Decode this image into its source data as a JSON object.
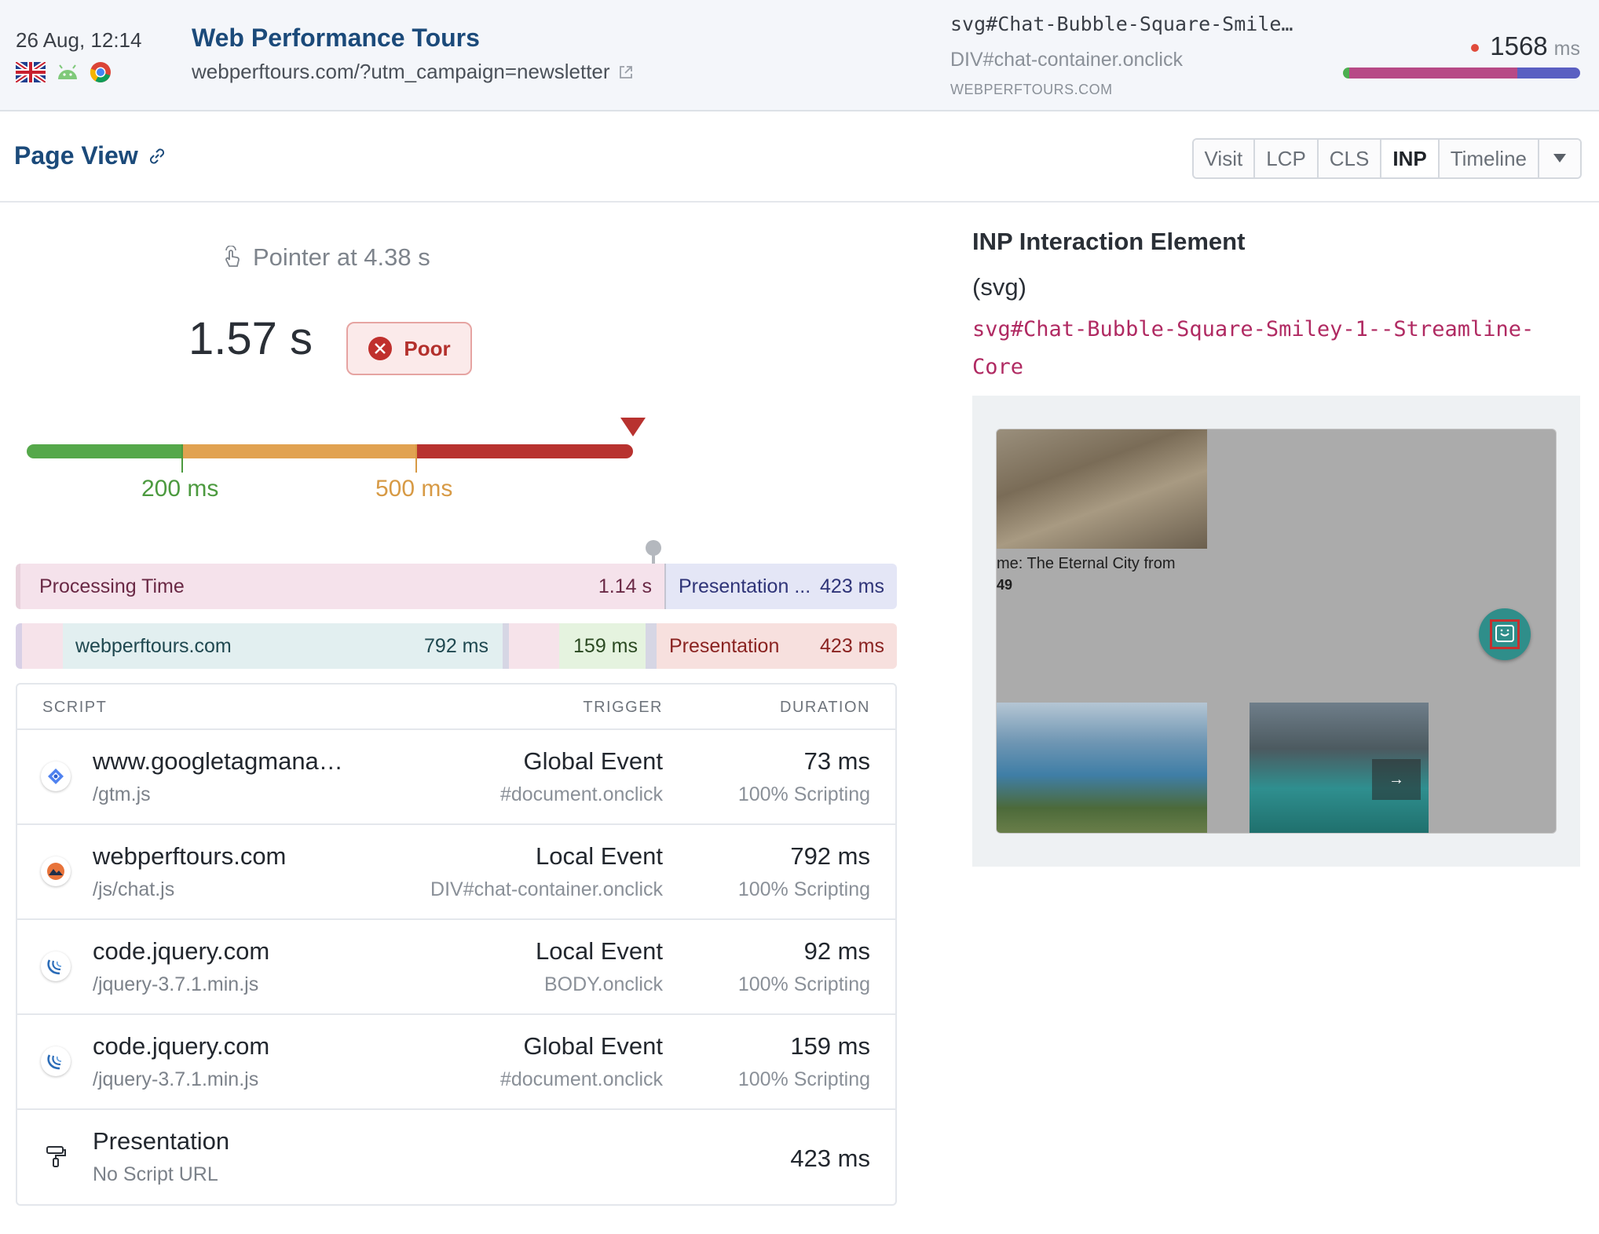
{
  "header": {
    "date": "26 Aug, 12:14",
    "title": "Web Performance Tours",
    "url": "webperftours.com/?utm_campaign=newsletter",
    "selector": "svg#Chat-Bubble-Square-Smile…",
    "trigger": "DIV#chat-container.onclick",
    "domain": "WEBPERFTOURS.COM",
    "metric_value": "1568",
    "metric_unit": "ms",
    "icons": [
      "uk-flag-icon",
      "android-icon",
      "chrome-icon"
    ],
    "colors": {
      "bar_pink": "#b74a86",
      "bar_blue": "#5a5fc2",
      "bar_green": "#4caf50"
    }
  },
  "page_view": {
    "title": "Page View",
    "tabs": [
      "Visit",
      "LCP",
      "CLS",
      "INP",
      "Timeline"
    ],
    "active_tab": "INP"
  },
  "inp": {
    "pointer_label": "Pointer at 4.38 s",
    "value": "1.57 s",
    "rating": "Poor",
    "threshold_good": "200 ms",
    "threshold_poor": "500 ms",
    "colors": {
      "good": "#55a84a",
      "needs_improvement": "#e1a251",
      "poor": "#b8322f"
    }
  },
  "breakdown": {
    "processing_label": "Processing Time",
    "processing_value": "1.14 s",
    "presentation_label": "Presentation ...",
    "presentation_value": "423 ms",
    "script1_label": "webperftours.com",
    "script1_value": "792 ms",
    "script2_value": "159 ms",
    "presentation2_label": "Presentation",
    "presentation2_value": "423 ms"
  },
  "table": {
    "headers": {
      "script": "SCRIPT",
      "trigger": "TRIGGER",
      "duration": "DURATION"
    },
    "rows": [
      {
        "icon": "google-tag-manager-icon",
        "host": "www.googletagmana…",
        "path": "/gtm.js",
        "trigger": "Global Event",
        "trigger_detail": "#document.onclick",
        "duration": "73 ms",
        "duration_detail": "100% Scripting"
      },
      {
        "icon": "webperftours-icon",
        "host": "webperftours.com",
        "path": "/js/chat.js",
        "trigger": "Local Event",
        "trigger_detail": "DIV#chat-container.onclick",
        "duration": "792 ms",
        "duration_detail": "100% Scripting"
      },
      {
        "icon": "jquery-icon",
        "host": "code.jquery.com",
        "path": "/jquery-3.7.1.min.js",
        "trigger": "Local Event",
        "trigger_detail": "BODY.onclick",
        "duration": "92 ms",
        "duration_detail": "100% Scripting"
      },
      {
        "icon": "jquery-icon",
        "host": "code.jquery.com",
        "path": "/jquery-3.7.1.min.js",
        "trigger": "Global Event",
        "trigger_detail": "#document.onclick",
        "duration": "159 ms",
        "duration_detail": "100% Scripting"
      },
      {
        "icon": "paint-roller-icon",
        "host": "Presentation",
        "path": "No Script URL",
        "trigger": "",
        "trigger_detail": "",
        "duration": "423 ms",
        "duration_detail": ""
      }
    ]
  },
  "element": {
    "heading": "INP Interaction Element",
    "tag": "(svg)",
    "selector": "svg#Chat-Bubble-Square-Smiley-1--Streamline-Core",
    "screenshot_caption": "me: The Eternal City from",
    "screenshot_number": "49",
    "screenshot_arrow": "→"
  }
}
